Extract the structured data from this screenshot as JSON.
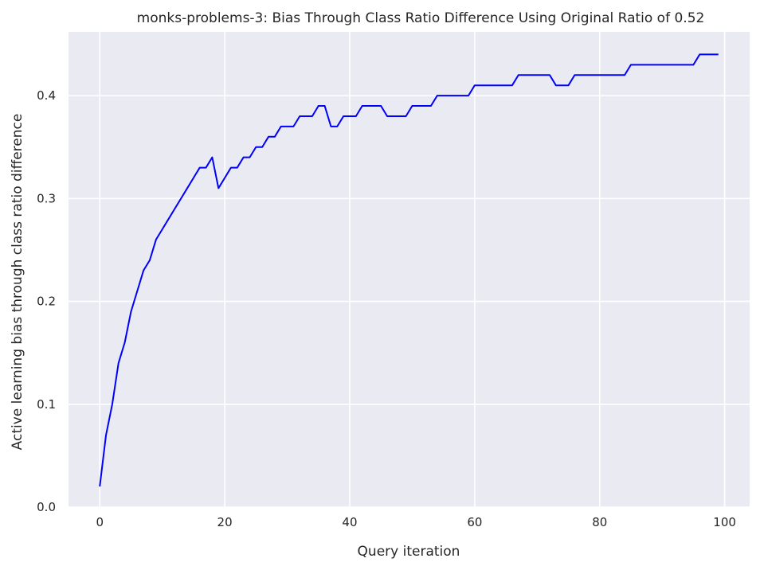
{
  "colors": {
    "plot_background": "#eaeaf2",
    "grid": "#ffffff",
    "series": "#0000ff"
  },
  "chart_data": {
    "type": "line",
    "title": "monks-problems-3: Bias Through Class Ratio Difference Using Original Ratio of 0.52",
    "xlabel": "Query iteration",
    "ylabel": "Active learning bias through class ratio difference",
    "xlim": [
      -5.0,
      104.0
    ],
    "ylim": [
      0.0,
      0.462
    ],
    "xticks": [
      0,
      20,
      40,
      60,
      80,
      100
    ],
    "xtick_labels": [
      "0",
      "20",
      "40",
      "60",
      "80",
      "100"
    ],
    "yticks": [
      0.0,
      0.1,
      0.2,
      0.3,
      0.4
    ],
    "ytick_labels": [
      "0.0",
      "0.1",
      "0.2",
      "0.3",
      "0.4"
    ],
    "grid": true,
    "series": [
      {
        "color": "#0000ff",
        "x": [
          0,
          1,
          2,
          3,
          4,
          5,
          6,
          7,
          8,
          9,
          10,
          11,
          12,
          13,
          14,
          15,
          16,
          17,
          18,
          19,
          20,
          21,
          22,
          23,
          24,
          25,
          26,
          27,
          28,
          29,
          30,
          31,
          32,
          33,
          34,
          35,
          36,
          37,
          38,
          39,
          40,
          41,
          42,
          43,
          44,
          45,
          46,
          47,
          48,
          49,
          50,
          51,
          52,
          53,
          54,
          55,
          56,
          57,
          58,
          59,
          60,
          61,
          62,
          63,
          64,
          65,
          66,
          67,
          68,
          69,
          70,
          71,
          72,
          73,
          74,
          75,
          76,
          77,
          78,
          79,
          80,
          81,
          82,
          83,
          84,
          85,
          86,
          87,
          88,
          89,
          90,
          91,
          92,
          93,
          94,
          95,
          96,
          97,
          98,
          99
        ],
        "y": [
          0.02,
          0.07,
          0.1,
          0.14,
          0.16,
          0.19,
          0.21,
          0.23,
          0.24,
          0.26,
          0.27,
          0.28,
          0.29,
          0.3,
          0.31,
          0.32,
          0.33,
          0.33,
          0.34,
          0.31,
          0.32,
          0.33,
          0.33,
          0.34,
          0.34,
          0.35,
          0.35,
          0.36,
          0.36,
          0.37,
          0.37,
          0.37,
          0.38,
          0.38,
          0.38,
          0.39,
          0.39,
          0.37,
          0.37,
          0.38,
          0.38,
          0.38,
          0.39,
          0.39,
          0.39,
          0.39,
          0.38,
          0.38,
          0.38,
          0.38,
          0.39,
          0.39,
          0.39,
          0.39,
          0.4,
          0.4,
          0.4,
          0.4,
          0.4,
          0.4,
          0.41,
          0.41,
          0.41,
          0.41,
          0.41,
          0.41,
          0.41,
          0.42,
          0.42,
          0.42,
          0.42,
          0.42,
          0.42,
          0.41,
          0.41,
          0.41,
          0.42,
          0.42,
          0.42,
          0.42,
          0.42,
          0.42,
          0.42,
          0.42,
          0.42,
          0.43,
          0.43,
          0.43,
          0.43,
          0.43,
          0.43,
          0.43,
          0.43,
          0.43,
          0.43,
          0.43,
          0.44,
          0.44,
          0.44,
          0.44
        ]
      }
    ]
  }
}
